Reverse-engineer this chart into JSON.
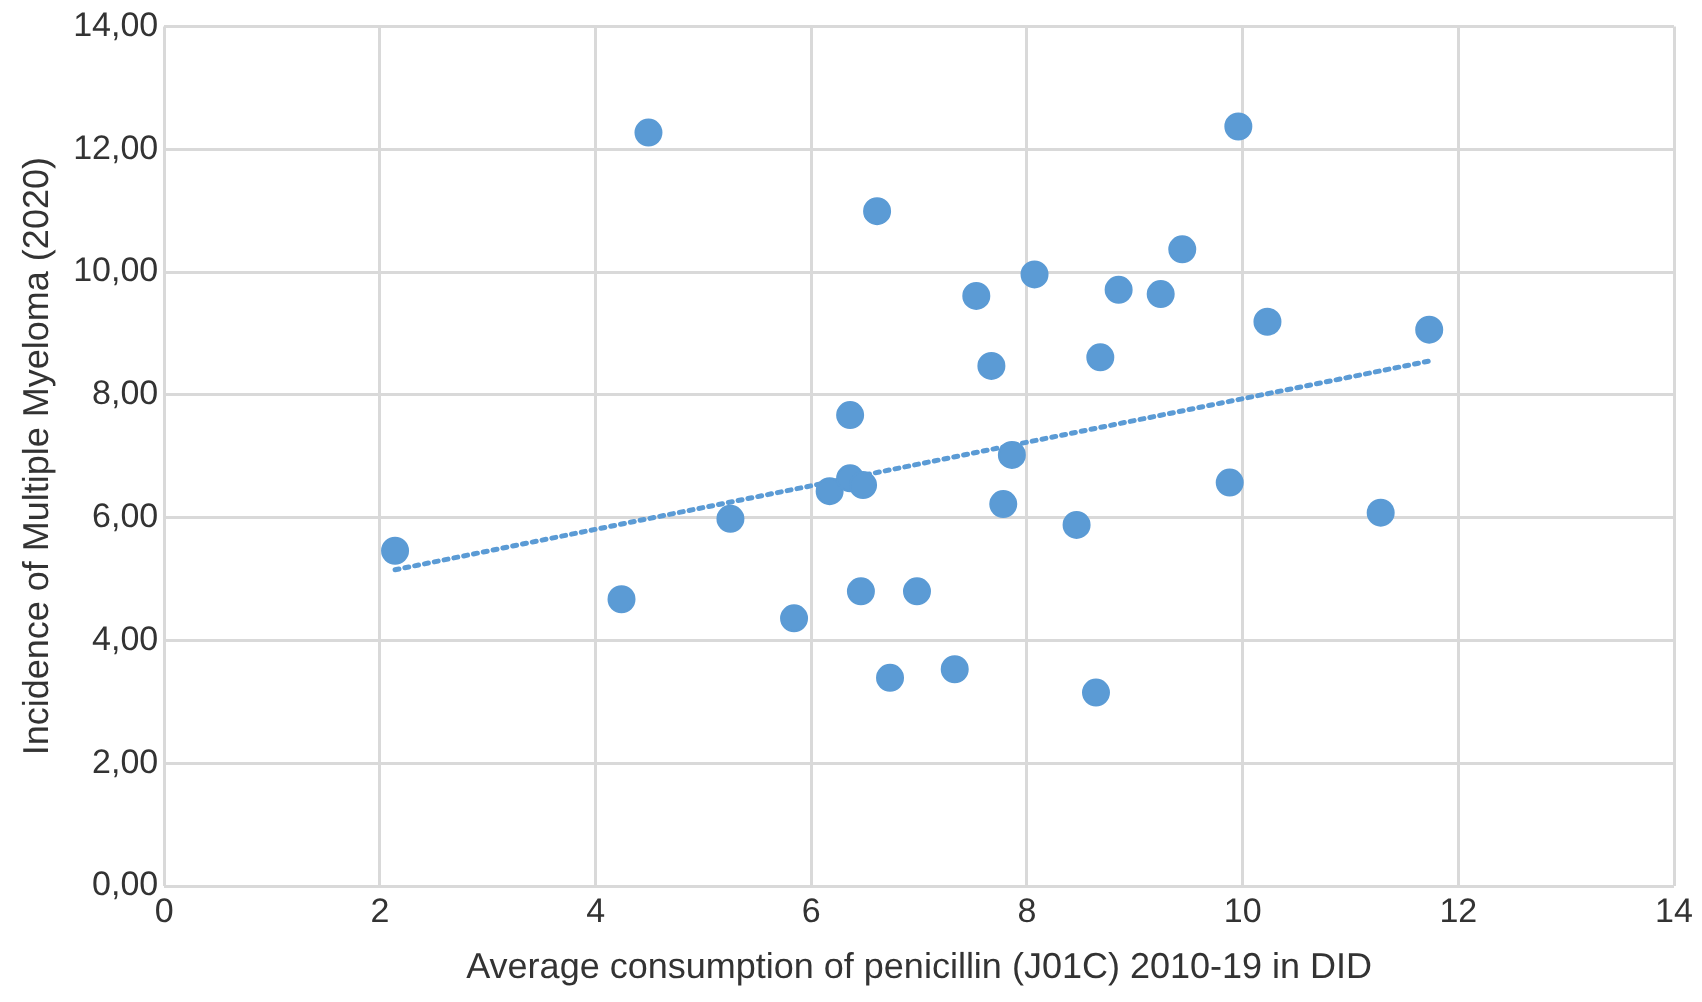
{
  "chart_data": {
    "type": "scatter",
    "xlabel": "Average consumption of penicillin (J01C) 2010-19 in DID",
    "ylabel": "Incidence of Multiple Myeloma (2020)",
    "xlim": [
      0,
      14
    ],
    "xticks": [
      0,
      2,
      4,
      6,
      8,
      10,
      12,
      14
    ],
    "ylim": [
      0,
      14
    ],
    "yticks": [
      {
        "value": 0,
        "label": "0,00"
      },
      {
        "value": 2,
        "label": "2,00"
      },
      {
        "value": 4,
        "label": "4,00"
      },
      {
        "value": 6,
        "label": "6,00"
      },
      {
        "value": 8,
        "label": "8,00"
      },
      {
        "value": 10,
        "label": "10,00"
      },
      {
        "value": 12,
        "label": "12,00"
      },
      {
        "value": 14,
        "label": "14,00"
      }
    ],
    "grid": true,
    "legend": false,
    "marker": "circle",
    "series": [
      {
        "color": "#5b9bd5",
        "x": [
          2.14,
          4.24,
          4.49,
          5.25,
          5.84,
          6.17,
          6.36,
          6.36,
          6.48,
          6.46,
          6.61,
          6.73,
          6.98,
          7.33,
          7.53,
          7.67,
          7.78,
          7.86,
          8.07,
          8.46,
          8.64,
          8.68,
          8.85,
          9.24,
          9.44,
          9.88,
          9.96,
          10.23,
          11.28,
          11.73
        ],
        "values": [
          5.46,
          4.67,
          12.27,
          5.98,
          4.36,
          6.43,
          7.67,
          6.64,
          6.53,
          4.8,
          10.99,
          3.39,
          4.8,
          3.53,
          9.61,
          8.47,
          6.22,
          7.02,
          9.96,
          5.88,
          3.15,
          8.61,
          9.71,
          9.64,
          10.37,
          6.57,
          12.37,
          9.19,
          6.08,
          9.06
        ]
      },
      {
        "type": "line",
        "color": "#5b9bd5",
        "line_style": "dotted",
        "marker": "none",
        "x": [
          2.14,
          11.73
        ],
        "values": [
          5.15,
          8.55
        ]
      }
    ]
  }
}
